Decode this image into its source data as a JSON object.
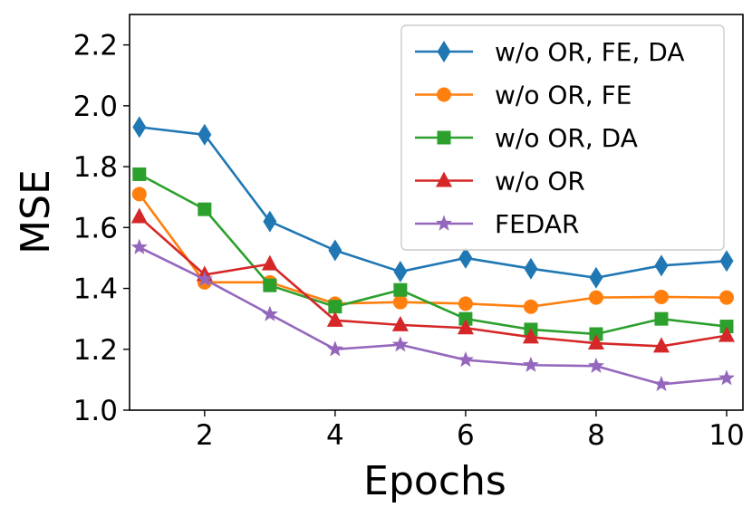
{
  "chart_data": {
    "type": "line",
    "title": "",
    "xlabel": "Epochs",
    "ylabel": "MSE",
    "xlim": [
      0.85,
      10.25
    ],
    "ylim": [
      1.0,
      2.3
    ],
    "x": [
      1,
      2,
      3,
      4,
      5,
      6,
      7,
      8,
      9,
      10
    ],
    "xticks": [
      2,
      4,
      6,
      8,
      10
    ],
    "xtick_labels": [
      "2",
      "4",
      "6",
      "8",
      "10"
    ],
    "yticks": [
      1.0,
      1.2,
      1.4,
      1.6,
      1.8,
      2.0,
      2.2
    ],
    "ytick_labels": [
      "1.0",
      "1.2",
      "1.4",
      "1.6",
      "1.8",
      "2.0",
      "2.2"
    ],
    "grid": false,
    "legend_position": "top-right",
    "series": [
      {
        "name": "w/o OR, FE, DA",
        "color": "#1f77b4",
        "marker": "diamond",
        "values": [
          1.93,
          1.905,
          1.62,
          1.525,
          1.455,
          1.5,
          1.465,
          1.435,
          1.475,
          1.49
        ]
      },
      {
        "name": "w/o OR, FE",
        "color": "#ff7f0e",
        "marker": "circle",
        "values": [
          1.71,
          1.42,
          1.42,
          1.35,
          1.355,
          1.35,
          1.34,
          1.37,
          1.372,
          1.37
        ]
      },
      {
        "name": "w/o OR, DA",
        "color": "#2ca02c",
        "marker": "square",
        "values": [
          1.775,
          1.66,
          1.41,
          1.34,
          1.395,
          1.3,
          1.265,
          1.25,
          1.3,
          1.275
        ]
      },
      {
        "name": "w/o OR",
        "color": "#d62728",
        "marker": "triangle",
        "values": [
          1.635,
          1.445,
          1.48,
          1.295,
          1.28,
          1.27,
          1.24,
          1.22,
          1.21,
          1.245
        ]
      },
      {
        "name": "FEDAR",
        "color": "#9467bd",
        "marker": "star",
        "values": [
          1.535,
          1.43,
          1.315,
          1.2,
          1.215,
          1.165,
          1.148,
          1.145,
          1.085,
          1.105
        ]
      }
    ]
  }
}
